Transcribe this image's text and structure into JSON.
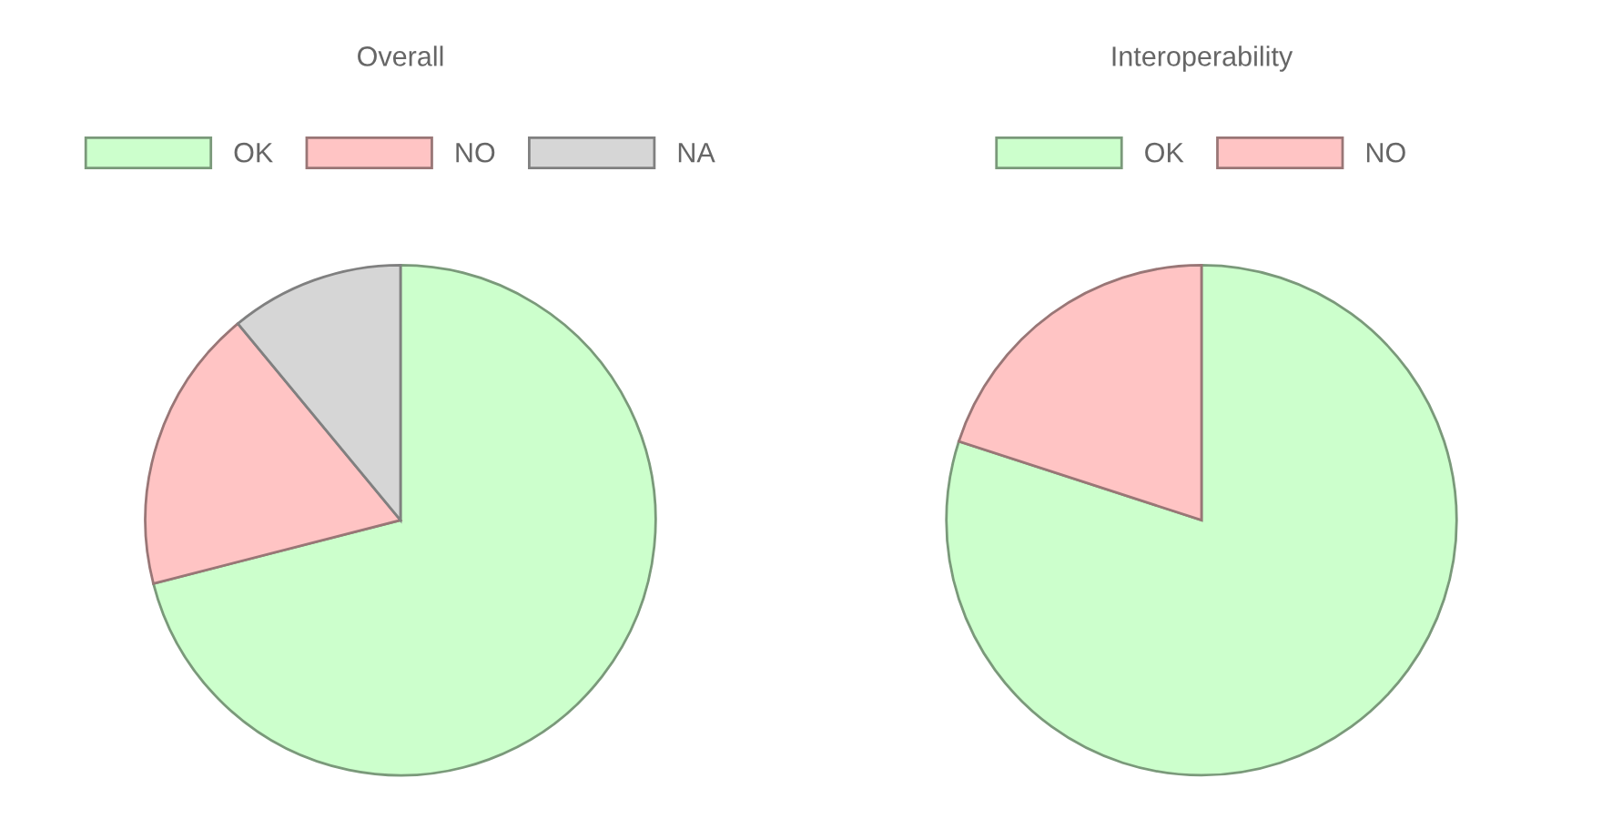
{
  "chart_data": [
    {
      "type": "pie",
      "title": "Overall",
      "categories": [
        "OK",
        "NO",
        "NA"
      ],
      "values": [
        71,
        18,
        11
      ],
      "colors": [
        "#ccffcc",
        "#ffc4c4",
        "#d6d6d6"
      ],
      "legend": "top"
    },
    {
      "type": "pie",
      "title": "Interoperability",
      "categories": [
        "OK",
        "NO"
      ],
      "values": [
        80,
        20
      ],
      "colors": [
        "#ccffcc",
        "#ffc4c4"
      ],
      "legend": "top"
    }
  ]
}
